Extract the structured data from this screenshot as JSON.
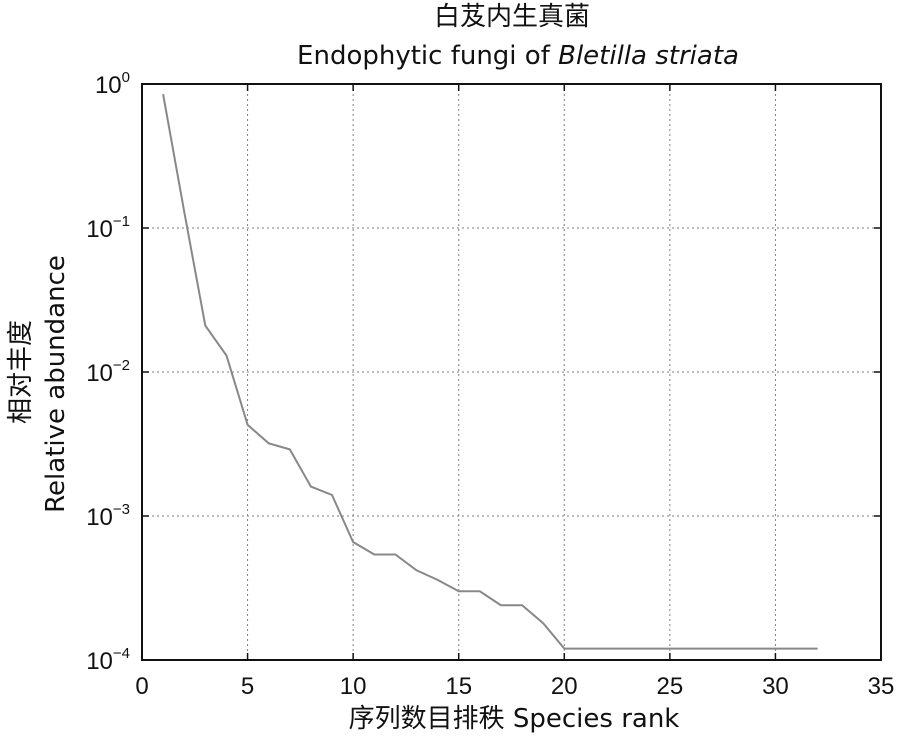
{
  "chart_data": {
    "type": "line",
    "title_cn": "白芨内生真菌",
    "title_en_prefix": "Endophytic fungi of ",
    "title_en_italic": "Bletilla striata",
    "xlabel": "序列数目排秩 Species rank",
    "ylabel_cn": "相对丰度",
    "ylabel_en": "Relative abundance",
    "xlim": [
      0,
      35
    ],
    "ylim": [
      0.0001,
      1
    ],
    "yscale": "log",
    "grid": true,
    "line_color": "#888888",
    "x_ticks": [
      0,
      5,
      10,
      15,
      20,
      25,
      30,
      35
    ],
    "y_ticks": [
      {
        "base": "10",
        "exp": "0",
        "value": 1
      },
      {
        "base": "10",
        "exp": "−1",
        "value": 0.1
      },
      {
        "base": "10",
        "exp": "−2",
        "value": 0.01
      },
      {
        "base": "10",
        "exp": "−3",
        "value": 0.001
      },
      {
        "base": "10",
        "exp": "−4",
        "value": 0.0001
      }
    ],
    "x": [
      1,
      2,
      3,
      4,
      5,
      6,
      7,
      8,
      9,
      10,
      11,
      12,
      13,
      14,
      15,
      16,
      17,
      18,
      19,
      20,
      21,
      22,
      23,
      24,
      25,
      26,
      27,
      28,
      29,
      30,
      31,
      32
    ],
    "y": [
      0.85,
      0.13,
      0.021,
      0.013,
      0.0043,
      0.0032,
      0.0029,
      0.0016,
      0.0014,
      0.00066,
      0.00054,
      0.00054,
      0.00042,
      0.00036,
      0.0003,
      0.0003,
      0.00024,
      0.00024,
      0.00018,
      0.00012,
      0.00012,
      0.00012,
      0.00012,
      0.00012,
      0.00012,
      0.00012,
      0.00012,
      0.00012,
      0.00012,
      0.00012,
      0.00012,
      0.00012
    ]
  }
}
